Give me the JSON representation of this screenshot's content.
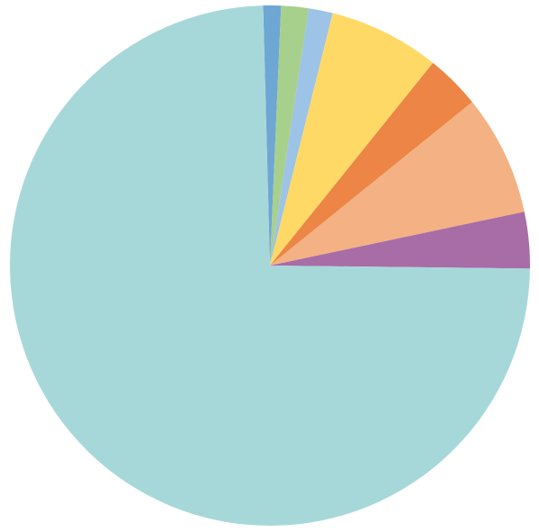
{
  "chart_data": {
    "type": "pie",
    "title": "",
    "legend": "none",
    "start_angle_deg": -1.5,
    "direction": "clockwise",
    "slices": [
      {
        "value": 1.1,
        "color": "#6ea6d4"
      },
      {
        "value": 1.7,
        "color": "#a8d08d"
      },
      {
        "value": 1.5,
        "color": "#9dc3e6"
      },
      {
        "value": 6.9,
        "color": "#ffd966"
      },
      {
        "value": 3.4,
        "color": "#ec8545"
      },
      {
        "value": 7.5,
        "color": "#f4b183"
      },
      {
        "value": 3.5,
        "color": "#a86ca7"
      },
      {
        "value": 74.4,
        "color": "#a7d8d9"
      }
    ]
  }
}
